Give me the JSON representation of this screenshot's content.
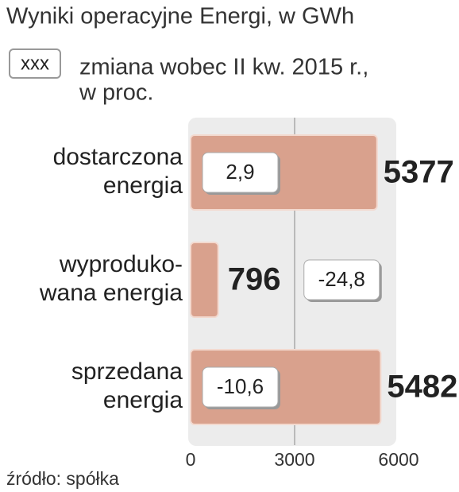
{
  "chart_data": {
    "type": "hbar",
    "title": "Wyniki operacyjne Energi, w GWh",
    "legend": {
      "box_text": "xxx",
      "text": [
        "zmiana wobec II kw. 2015 r.,",
        "w proc."
      ]
    },
    "categories": [
      [
        "dostarczona",
        "energia"
      ],
      [
        "wyproduko-",
        "wana energia"
      ],
      [
        "sprzedana",
        "energia"
      ]
    ],
    "values": [
      5377,
      796,
      5482
    ],
    "color": "#d9a18d",
    "changes": [
      2.9,
      -24.8,
      -10.6
    ],
    "change_labels": [
      "2,9",
      "-24,8",
      "-10,6"
    ],
    "xlim": [
      0,
      6000
    ],
    "xticks": [
      0,
      3000,
      6000
    ],
    "grid": true,
    "source": "źródło: spółka"
  }
}
